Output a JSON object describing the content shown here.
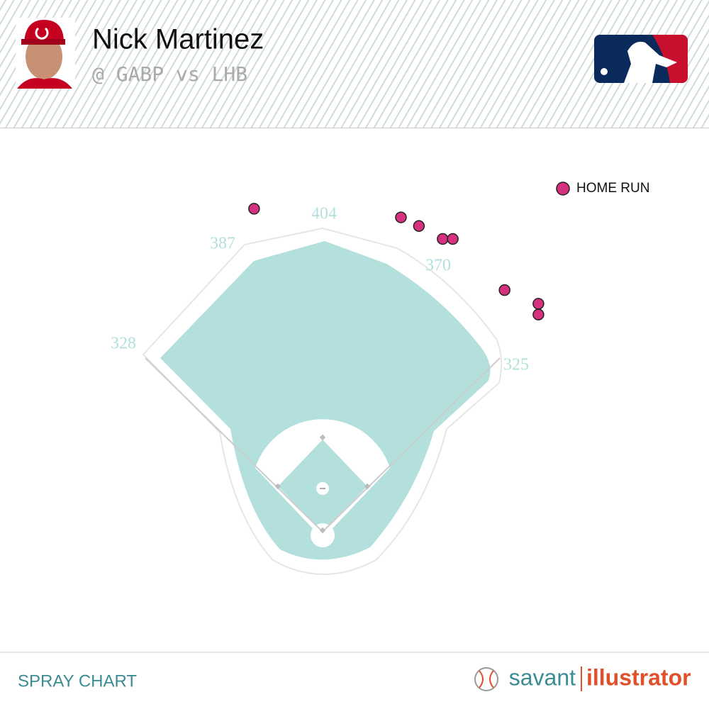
{
  "chart_data": {
    "type": "scatter",
    "title": "Nick Martinez",
    "subtitle": "@ GABP vs LHB",
    "series": [
      {
        "name": "HOME RUN",
        "color": "#d6317e",
        "x": [
          -95,
          109,
          134,
          167,
          181,
          253,
          300,
          300
        ],
        "values": [
          449,
          437,
          425,
          407,
          407,
          336,
          317,
          302
        ]
      }
    ],
    "xlim": [
      -448,
      537
    ],
    "ylim": [
      -246,
      739
    ],
    "fence_distances": [
      328,
      387,
      404,
      370,
      325
    ],
    "footer_left": "SPRAY CHART",
    "brand_left": "savant",
    "brand_right": "illustrator"
  }
}
